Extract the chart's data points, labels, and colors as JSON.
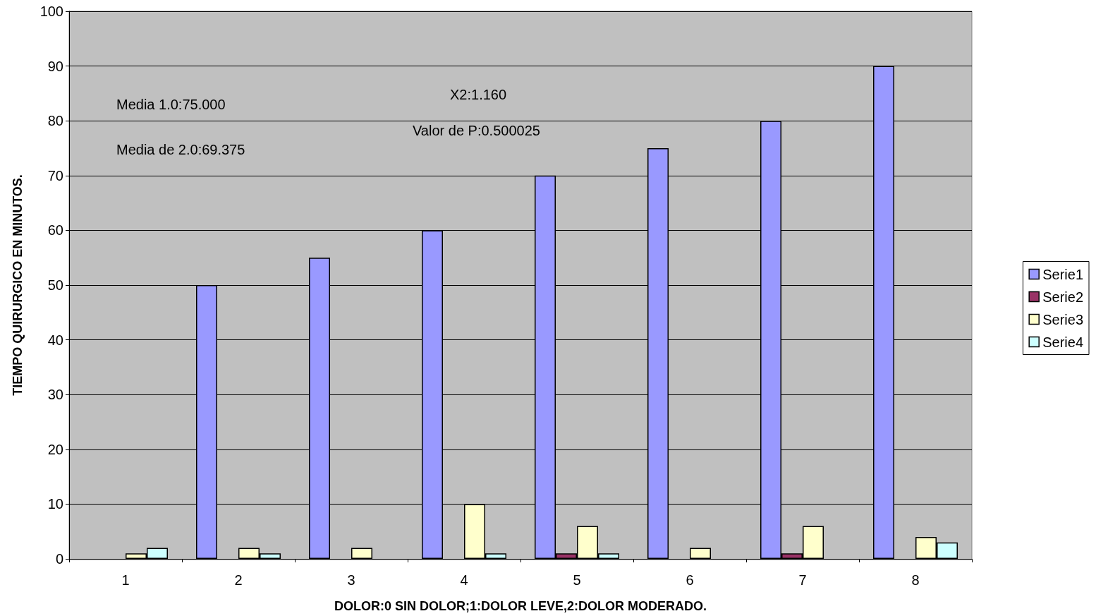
{
  "chart_data": {
    "type": "bar",
    "xlabel": "DOLOR:0 SIN DOLOR;1:DOLOR LEVE,2:DOLOR MODERADO.",
    "ylabel": "TIEMPO QUIRURGICO EN MINUTOS.",
    "categories": [
      "1",
      "2",
      "3",
      "4",
      "5",
      "6",
      "7",
      "8"
    ],
    "series": [
      {
        "name": "Serie1",
        "color": "#9999ff",
        "values": [
          null,
          50,
          55,
          60,
          70,
          75,
          80,
          90
        ]
      },
      {
        "name": "Serie2",
        "color": "#993366",
        "values": [
          null,
          null,
          null,
          null,
          1,
          null,
          1,
          null
        ]
      },
      {
        "name": "Serie3",
        "color": "#ffffcc",
        "values": [
          1,
          2,
          2,
          10,
          6,
          2,
          6,
          4
        ]
      },
      {
        "name": "Serie4",
        "color": "#ccffff",
        "values": [
          2,
          1,
          null,
          1,
          1,
          null,
          null,
          3
        ]
      }
    ],
    "ylim": [
      0,
      100
    ],
    "yticks": [
      0,
      10,
      20,
      30,
      40,
      50,
      60,
      70,
      80,
      90,
      100
    ],
    "grid": "y",
    "legend": "right",
    "annotations": [
      "Media 1.0:75.000",
      "Media de 2.0:69.375",
      "X2:1.160",
      "Valor de P:0.500025"
    ]
  }
}
